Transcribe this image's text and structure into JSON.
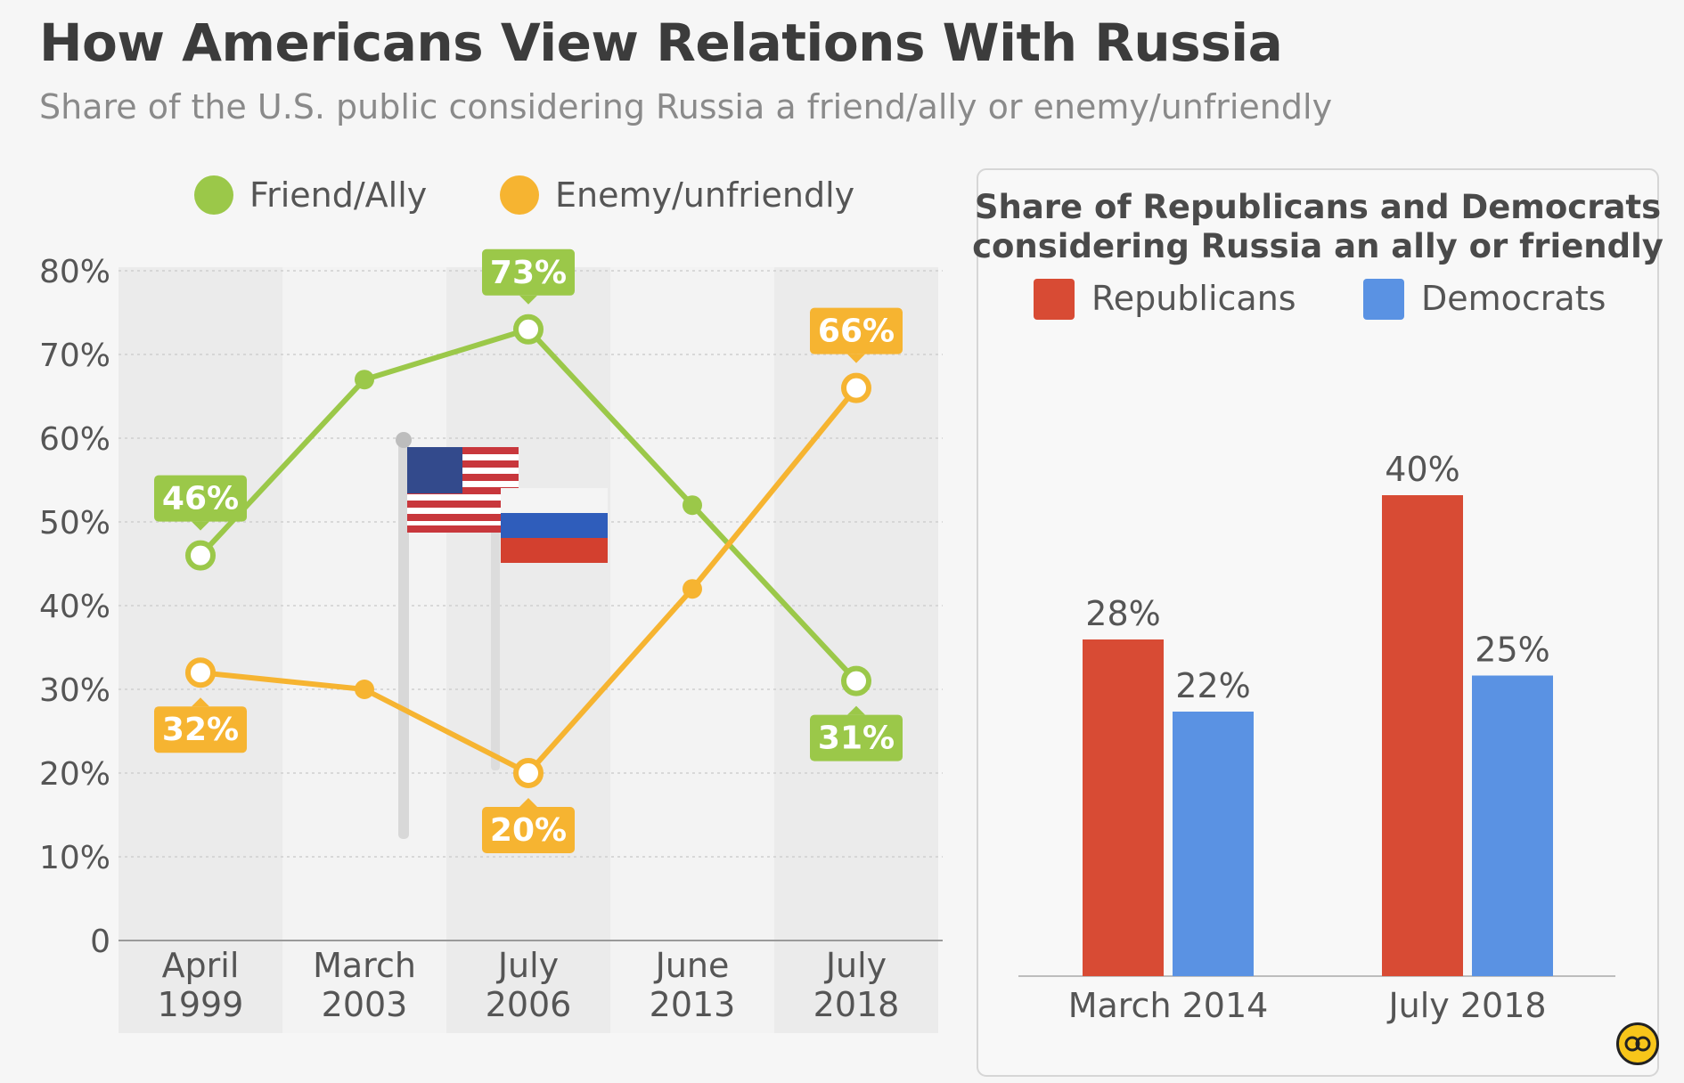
{
  "title": "How Americans View Relations With Russia",
  "subtitle": "Share of the U.S. public considering Russia a friend/ally or enemy/unfriendly",
  "colors": {
    "friend": "#9bc849",
    "enemy": "#f6b431",
    "republicans": "#d84b34",
    "democrats": "#5a92e3"
  },
  "chart_data": [
    {
      "type": "line",
      "categories": [
        "April 1999",
        "March 2003",
        "July 2006",
        "June 2013",
        "July 2018"
      ],
      "category_lines": [
        [
          "April",
          "1999"
        ],
        [
          "March",
          "2003"
        ],
        [
          "July",
          "2006"
        ],
        [
          "June",
          "2013"
        ],
        [
          "July",
          "2018"
        ]
      ],
      "series": [
        {
          "name": "Friend/Ally",
          "values": [
            46,
            67,
            73,
            52,
            31
          ],
          "labels": [
            "46%",
            "",
            "73%",
            "",
            "31%"
          ]
        },
        {
          "name": "Enemy/unfriendly",
          "values": [
            32,
            30,
            20,
            42,
            66
          ],
          "labels": [
            "32%",
            "",
            "20%",
            "",
            "66%"
          ]
        }
      ],
      "yticks": [
        "0",
        "10%",
        "20%",
        "30%",
        "40%",
        "50%",
        "60%",
        "70%",
        "80%"
      ],
      "ylim": [
        0,
        80
      ],
      "grid": true,
      "legend_position": "top"
    },
    {
      "type": "bar",
      "title": "Share of Republicans and Democrats considering Russia an ally or friendly",
      "categories": [
        "March 2014",
        "July 2018"
      ],
      "series": [
        {
          "name": "Republicans",
          "values": [
            28,
            40
          ],
          "labels": [
            "28%",
            "40%"
          ]
        },
        {
          "name": "Democrats",
          "values": [
            22,
            25
          ],
          "labels": [
            "22%",
            "25%"
          ]
        }
      ],
      "legend_position": "top"
    }
  ]
}
